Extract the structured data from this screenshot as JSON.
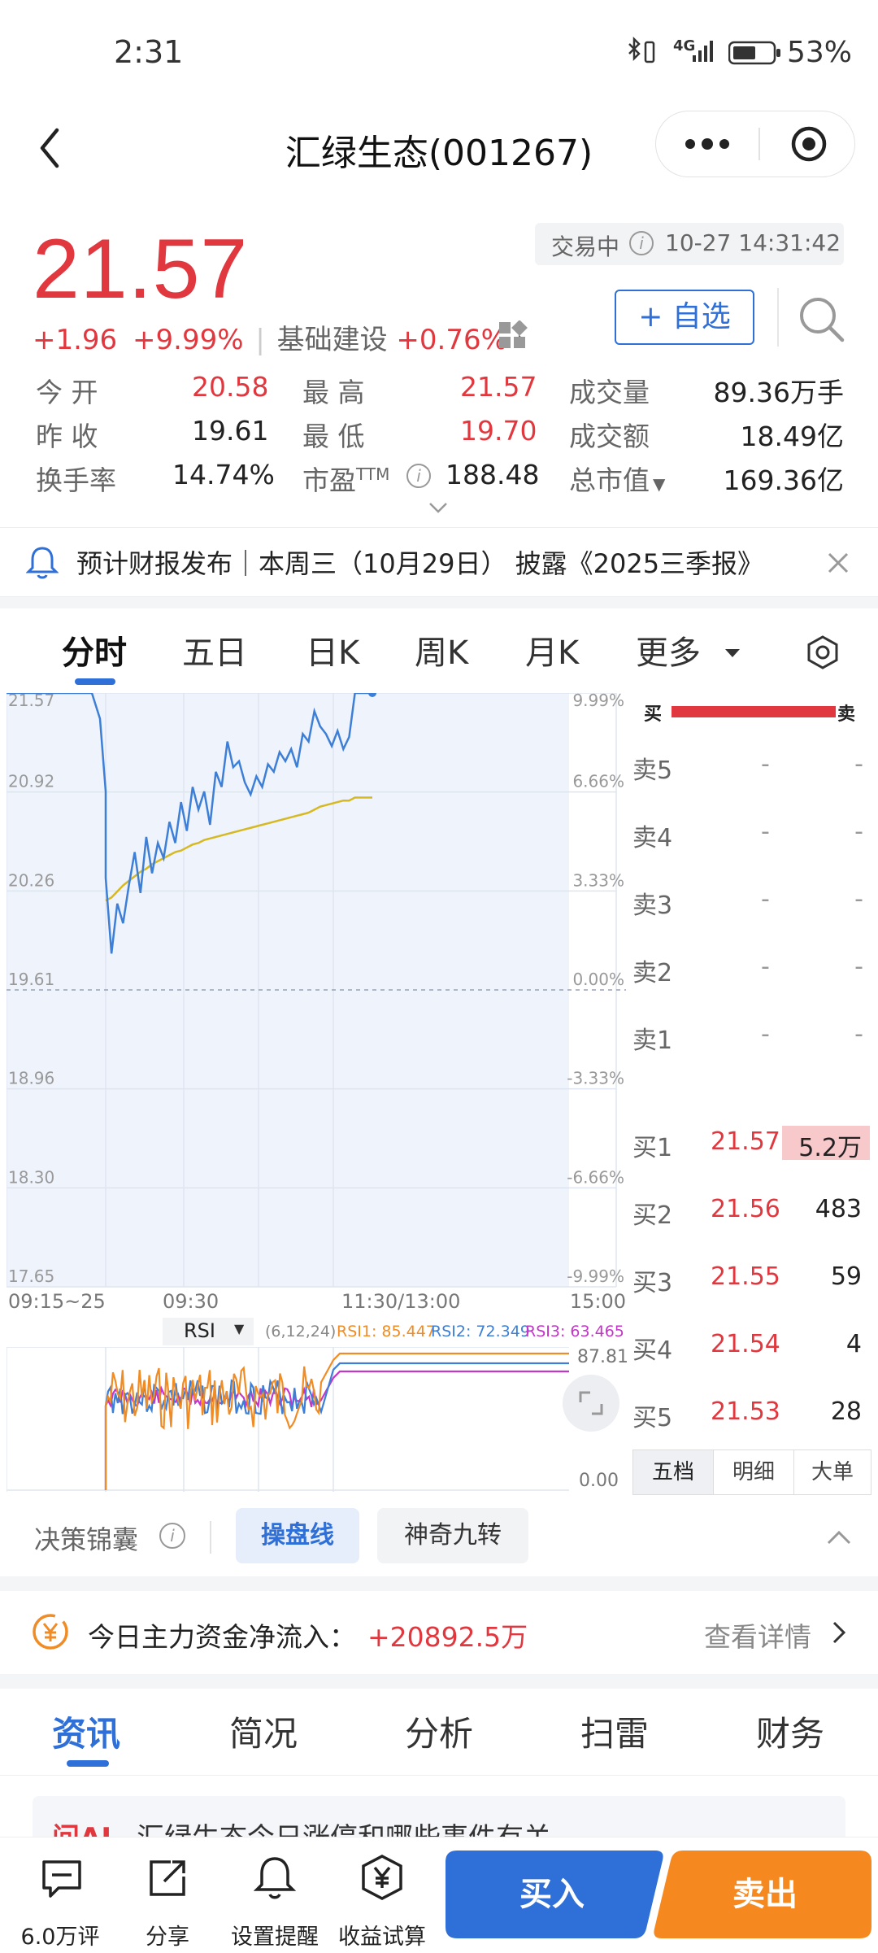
{
  "status": {
    "time": "2:31",
    "network": "4G",
    "battery": "53%"
  },
  "nav": {
    "title": "汇绿生态(001267)"
  },
  "quote": {
    "price": "21.57",
    "change": "+1.96",
    "change_pct": "+9.99%",
    "sector": "基础建设",
    "sector_pct": "+0.76%",
    "trade_status": "交易中",
    "datetime": "10-27 14:31:42",
    "watch_label": "+ 自选",
    "stats": {
      "open_label": "今 开",
      "open": "20.58",
      "high_label": "最 高",
      "high": "21.57",
      "volume_label": "成交量",
      "volume": "89.36万手",
      "prev_label": "昨 收",
      "prev": "19.61",
      "low_label": "最 低",
      "low": "19.70",
      "amount_label": "成交额",
      "amount": "18.49亿",
      "turnover_label": "换手率",
      "turnover": "14.74%",
      "pe_label": "市盈",
      "pe_sup": "TTM",
      "pe": "188.48",
      "mcap_label": "总市值",
      "mcap": "169.36亿"
    }
  },
  "banner": {
    "text": "预计财报发布｜本周三（10月29日） 披露《2025三季报》"
  },
  "chart_tabs": [
    "分时",
    "五日",
    "日K",
    "周K",
    "月K",
    "更多"
  ],
  "chart_data": {
    "type": "line",
    "y_left_ticks": [
      "21.57",
      "20.92",
      "20.26",
      "19.61",
      "18.96",
      "18.30",
      "17.65"
    ],
    "y_right_ticks": [
      "9.99%",
      "6.66%",
      "3.33%",
      "0.00%",
      "-3.33%",
      "-6.66%",
      "-9.99%"
    ],
    "x_ticks": [
      "09:15~25",
      "09:30",
      "11:30/13:00",
      "15:00"
    ],
    "ylim": [
      17.65,
      21.57
    ],
    "series": [
      {
        "values": [
          20.35,
          19.85,
          20.18,
          20.05,
          20.3,
          20.52,
          20.25,
          20.62,
          20.38,
          20.58,
          20.48,
          20.72,
          20.58,
          20.85,
          20.66,
          20.95,
          20.8,
          20.92,
          20.7,
          21.05,
          20.95,
          21.25,
          21.08,
          21.12,
          20.98,
          20.9,
          21.02,
          20.95,
          21.1,
          21.05,
          21.18,
          21.12,
          21.2,
          21.08,
          21.3,
          21.25,
          21.45,
          21.35,
          21.3,
          21.22,
          21.32,
          21.2,
          21.28,
          21.57,
          21.57,
          21.57,
          21.57
        ]
      },
      {
        "values": [
          20.2,
          20.22,
          20.26,
          20.3,
          20.33,
          20.36,
          20.39,
          20.41,
          20.44,
          20.46,
          20.48,
          20.5,
          20.52,
          20.53,
          20.55,
          20.57,
          20.58,
          20.6,
          20.61,
          20.62,
          20.63,
          20.64,
          20.65,
          20.66,
          20.67,
          20.68,
          20.69,
          20.7,
          20.71,
          20.72,
          20.73,
          20.74,
          20.75,
          20.76,
          20.77,
          20.78,
          20.8,
          20.82,
          20.83,
          20.84,
          20.85,
          20.86,
          20.86,
          20.88,
          20.88,
          20.88,
          20.88
        ]
      }
    ]
  },
  "rsi": {
    "label": "RSI",
    "params": "(6,12,24)",
    "rsi1": "RSI1: 85.447",
    "rsi2": "RSI2: 72.349",
    "rsi3": "RSI3: 63.465",
    "top": "87.81",
    "bottom": "0.00"
  },
  "orderbook": {
    "buy_label": "买",
    "sell_label": "卖",
    "asks": [
      {
        "label": "卖5",
        "price": "-",
        "vol": "-"
      },
      {
        "label": "卖4",
        "price": "-",
        "vol": "-"
      },
      {
        "label": "卖3",
        "price": "-",
        "vol": "-"
      },
      {
        "label": "卖2",
        "price": "-",
        "vol": "-"
      },
      {
        "label": "卖1",
        "price": "-",
        "vol": "-"
      }
    ],
    "bids": [
      {
        "label": "买1",
        "price": "21.57",
        "vol": "5.2万"
      },
      {
        "label": "买2",
        "price": "21.56",
        "vol": "483"
      },
      {
        "label": "买3",
        "price": "21.55",
        "vol": "59"
      },
      {
        "label": "买4",
        "price": "21.54",
        "vol": "4"
      },
      {
        "label": "买5",
        "price": "21.53",
        "vol": "28"
      }
    ],
    "tabs": [
      "五档",
      "明细",
      "大单"
    ]
  },
  "tools": {
    "label": "决策锦囊",
    "chip1": "操盘线",
    "chip2": "神奇九转"
  },
  "capital": {
    "label": "今日主力资金净流入：",
    "value": "+20892.5万",
    "link": "查看详情"
  },
  "news_tabs": [
    "资讯",
    "简况",
    "分析",
    "扫雷",
    "财务"
  ],
  "news_peek": {
    "tag": "问AI",
    "text": "汇绿生态今日涨停和哪些事件有关"
  },
  "bottom": {
    "comments": "6.0万评",
    "share": "分享",
    "alert": "设置提醒",
    "calc": "收益试算",
    "buy": "买入",
    "sell": "卖出"
  }
}
